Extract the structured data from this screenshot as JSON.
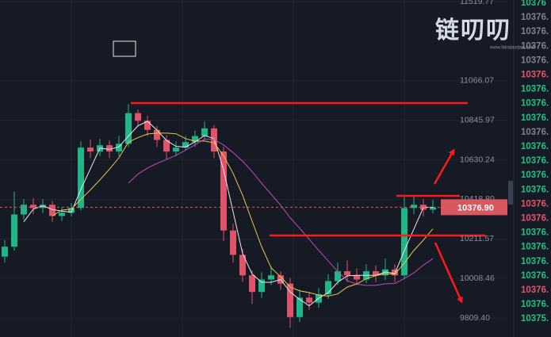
{
  "chart_data": {
    "type": "candlestick",
    "ylim": [
      9715,
      11529
    ],
    "log_scale": true,
    "yticks": [
      {
        "value": 11519.77,
        "label": "11519.77"
      },
      {
        "value": 11066.07,
        "label": "11066.07"
      },
      {
        "value": 10845.97,
        "label": "10845.97"
      },
      {
        "value": 10630.24,
        "label": "10630.24"
      },
      {
        "value": 10418.8,
        "label": "10418.80"
      },
      {
        "value": 10211.57,
        "label": "10211.57"
      },
      {
        "value": 10008.46,
        "label": "10008.46"
      },
      {
        "value": 9809.4,
        "label": "9809.40"
      }
    ],
    "up_color": "#21b58a",
    "down_color": "#e0546a",
    "open": [
      10120,
      10171,
      10339,
      10390,
      10373,
      10390,
      10331,
      10348,
      10373,
      10696,
      10675,
      10709,
      10675,
      10717,
      10885,
      10843,
      10793,
      10738,
      10675,
      10696,
      10726,
      10759,
      10801,
      10675,
      10255,
      10129,
      10024,
      9940,
      10003,
      10024,
      9982,
      9814,
      9911,
      9886,
      9928,
      9995,
      10045,
      10024,
      10003,
      10045,
      10024,
      10054,
      10024,
      10373,
      10390,
      10364
    ],
    "high": [
      10205,
      10460,
      10420,
      10425,
      10420,
      10410,
      10375,
      10400,
      10730,
      10740,
      10745,
      10735,
      10760,
      10935,
      10905,
      10870,
      10815,
      10765,
      10730,
      10760,
      10790,
      10840,
      10820,
      10700,
      10290,
      10160,
      10050,
      10040,
      10070,
      10045,
      10010,
      9950,
      9940,
      9960,
      10030,
      10090,
      10100,
      10060,
      10080,
      10075,
      10110,
      10080,
      10430,
      10440,
      10420,
      10415
    ],
    "low": [
      10090,
      10150,
      10310,
      10340,
      10345,
      10300,
      10305,
      10330,
      10360,
      10640,
      10650,
      10640,
      10650,
      10700,
      10810,
      10760,
      10700,
      10630,
      10650,
      10680,
      10700,
      10740,
      10640,
      10200,
      10090,
      9990,
      9880,
      9910,
      9975,
      9950,
      9760,
      9790,
      9850,
      9860,
      9905,
      9975,
      9990,
      9975,
      9985,
      9990,
      10000,
      9990,
      10010,
      10340,
      10330,
      10345
    ],
    "close": [
      10171,
      10339,
      10390,
      10373,
      10390,
      10331,
      10348,
      10373,
      10696,
      10675,
      10709,
      10675,
      10717,
      10885,
      10843,
      10793,
      10738,
      10675,
      10696,
      10726,
      10759,
      10801,
      10675,
      10255,
      10129,
      10024,
      9940,
      10003,
      10024,
      9982,
      9814,
      9911,
      9886,
      9928,
      9995,
      10045,
      10024,
      10003,
      10045,
      10024,
      10054,
      10024,
      10373,
      10390,
      10364,
      10376.9
    ],
    "current_price": {
      "value": 10376.9,
      "label": "10376.90"
    },
    "current_price_color": "#d9575e",
    "logo": "链叨叨",
    "logo_url": "www.liandaodao.com",
    "side_column": [
      {
        "text": "10376",
        "color": "#21c08a"
      },
      {
        "text": "10376.",
        "color": "#7c8290"
      },
      {
        "text": "10376.",
        "color": "#7c8290"
      },
      {
        "text": "10376.",
        "color": "#7c8290"
      },
      {
        "text": "10376.",
        "color": "#7c8290"
      },
      {
        "text": "10376.",
        "color": "#e0546a"
      },
      {
        "text": "10376.",
        "color": "#21c08a"
      },
      {
        "text": "10376.",
        "color": "#21c08a"
      },
      {
        "text": "10376.",
        "color": "#21c08a"
      },
      {
        "text": "10376.",
        "color": "#7c8290"
      },
      {
        "text": "10376.",
        "color": "#21c08a"
      },
      {
        "text": "10376.",
        "color": "#21c08a"
      },
      {
        "text": "10376.",
        "color": "#21c08a"
      },
      {
        "text": "10376.",
        "color": "#21c08a"
      },
      {
        "text": "10376.",
        "color": "#e0546a"
      },
      {
        "text": "10376.",
        "color": "#e0546a"
      },
      {
        "text": "10376.",
        "color": "#21c08a"
      },
      {
        "text": "10376.",
        "color": "#21c08a"
      },
      {
        "text": "10376.",
        "color": "#21c08a"
      },
      {
        "text": "10376.",
        "color": "#21c08a"
      },
      {
        "text": "10376.",
        "color": "#e0546a"
      },
      {
        "text": "10376.",
        "color": "#21c08a"
      },
      {
        "text": "10375.",
        "color": "#21c08a"
      }
    ]
  }
}
